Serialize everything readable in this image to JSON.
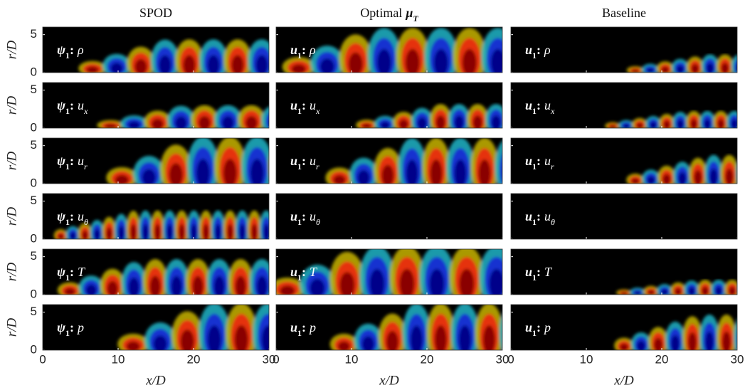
{
  "figure": {
    "columns": [
      {
        "title": {
          "text": "SPOD"
        }
      },
      {
        "title": {
          "text": "Optimal",
          "symbol": "μ",
          "sub": "T"
        }
      },
      {
        "title": {
          "text": "Baseline"
        }
      }
    ],
    "rows": [
      {
        "cells": [
          {
            "mode": "ψ",
            "mode_sub": "1",
            "sep": ":",
            "var": "ρ"
          },
          {
            "mode": "u",
            "mode_sub": "1",
            "sep": ":",
            "var": "ρ"
          },
          {
            "mode": "u",
            "mode_sub": "1",
            "sep": ":",
            "var": "ρ"
          }
        ]
      },
      {
        "cells": [
          {
            "mode": "ψ",
            "mode_sub": "1",
            "sep": ":",
            "var": "u",
            "var_sub": "x"
          },
          {
            "mode": "u",
            "mode_sub": "1",
            "sep": ":",
            "var": "u",
            "var_sub": "x"
          },
          {
            "mode": "u",
            "mode_sub": "1",
            "sep": ":",
            "var": "u",
            "var_sub": "x"
          }
        ]
      },
      {
        "cells": [
          {
            "mode": "ψ",
            "mode_sub": "1",
            "sep": ":",
            "var": "u",
            "var_sub": "r"
          },
          {
            "mode": "u",
            "mode_sub": "1",
            "sep": ":",
            "var": "u",
            "var_sub": "r"
          },
          {
            "mode": "u",
            "mode_sub": "1",
            "sep": ":",
            "var": "u",
            "var_sub": "r"
          }
        ]
      },
      {
        "cells": [
          {
            "mode": "ψ",
            "mode_sub": "1",
            "sep": ":",
            "var": "u",
            "var_sub": "θ"
          },
          {
            "mode": "u",
            "mode_sub": "1",
            "sep": ":",
            "var": "u",
            "var_sub": "θ"
          },
          {
            "mode": "u",
            "mode_sub": "1",
            "sep": ":",
            "var": "u",
            "var_sub": "θ"
          }
        ]
      },
      {
        "cells": [
          {
            "mode": "ψ",
            "mode_sub": "1",
            "sep": ":",
            "var": "T"
          },
          {
            "mode": "u",
            "mode_sub": "1",
            "sep": ":",
            "var": "T"
          },
          {
            "mode": "u",
            "mode_sub": "1",
            "sep": ":",
            "var": "T"
          }
        ]
      },
      {
        "cells": [
          {
            "mode": "ψ",
            "mode_sub": "1",
            "sep": ":",
            "var": "p"
          },
          {
            "mode": "u",
            "mode_sub": "1",
            "sep": ":",
            "var": "p"
          },
          {
            "mode": "u",
            "mode_sub": "1",
            "sep": ":",
            "var": "p"
          }
        ]
      }
    ],
    "x_axis": {
      "label": "x/D",
      "lim": [
        0,
        30
      ],
      "ticks": [
        0,
        10,
        20,
        30
      ]
    },
    "y_axis": {
      "label": "r/D",
      "lim": [
        0,
        6
      ],
      "ticks": [
        0,
        5
      ]
    }
  }
}
